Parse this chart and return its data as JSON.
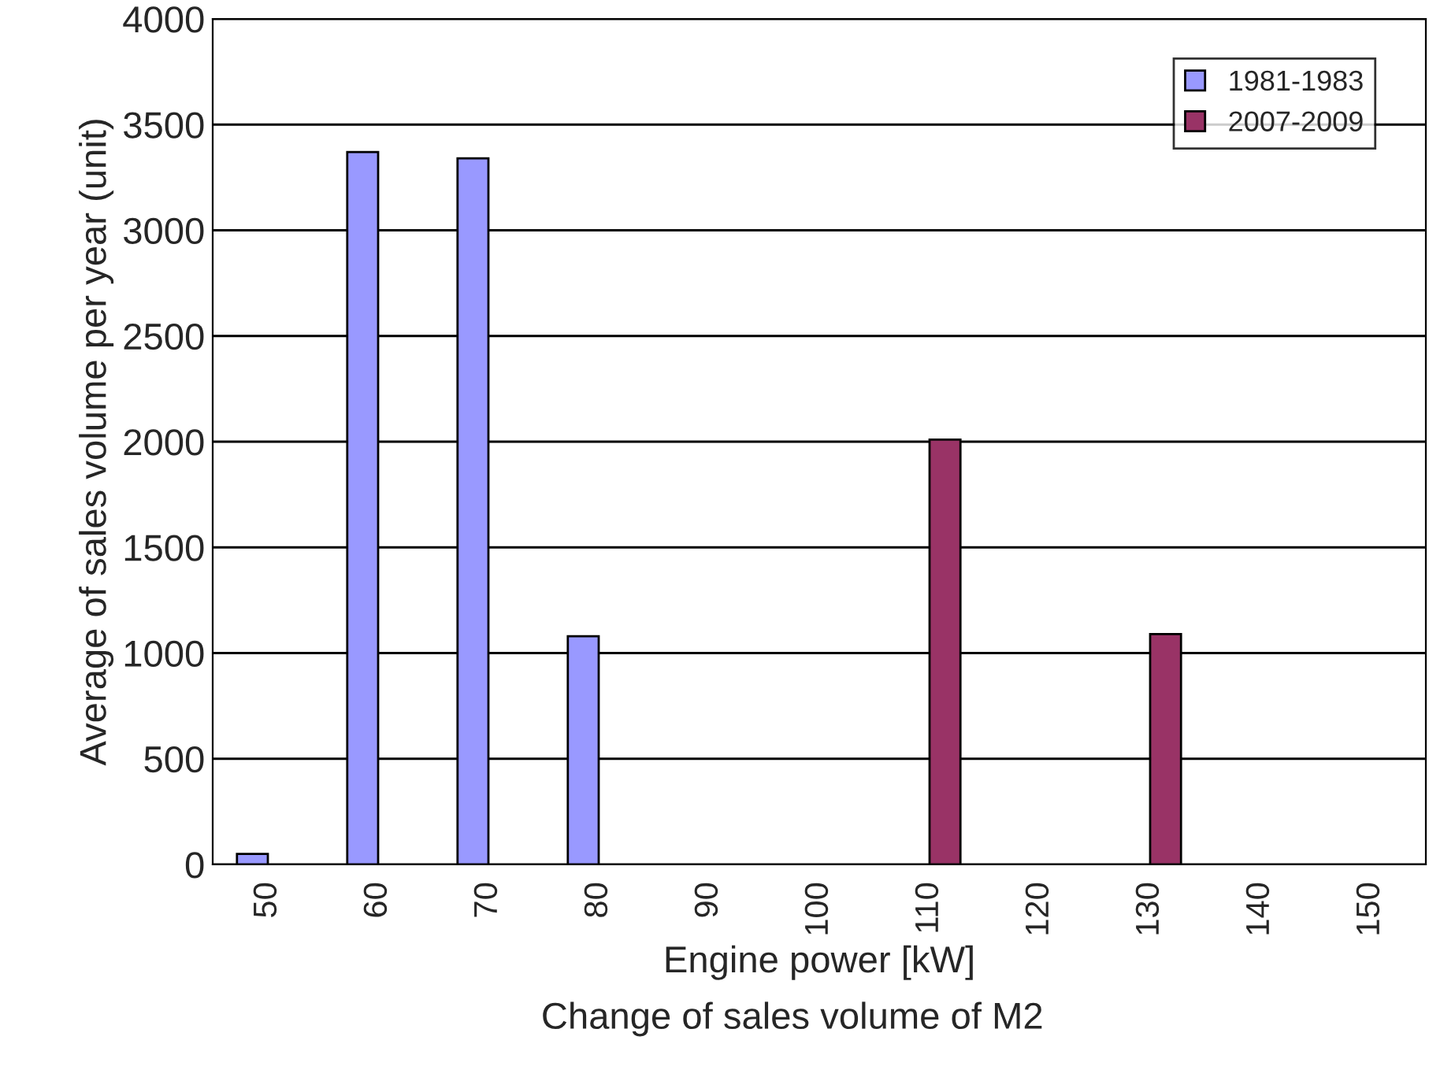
{
  "chart_data": {
    "type": "bar",
    "categories": [
      "50",
      "60",
      "70",
      "80",
      "90",
      "100",
      "110",
      "120",
      "130",
      "140",
      "150"
    ],
    "series": [
      {
        "name": "1981-1983",
        "color": "#9999ff",
        "values": [
          50,
          3370,
          3340,
          1080,
          null,
          null,
          null,
          null,
          null,
          null,
          null
        ]
      },
      {
        "name": "2007-2009",
        "color": "#993366",
        "values": [
          null,
          null,
          null,
          null,
          null,
          null,
          2010,
          null,
          1090,
          null,
          null
        ]
      }
    ],
    "xlabel": "Engine power [kW]",
    "ylabel": "Average of sales volume per year (unit)",
    "annotations": [
      "Change of sales volume of M2"
    ],
    "ylim": [
      0,
      4000
    ],
    "yticks": [
      0,
      500,
      1000,
      1500,
      2000,
      2500,
      3000,
      3500,
      4000
    ],
    "grid": "y",
    "legend": "top right"
  }
}
